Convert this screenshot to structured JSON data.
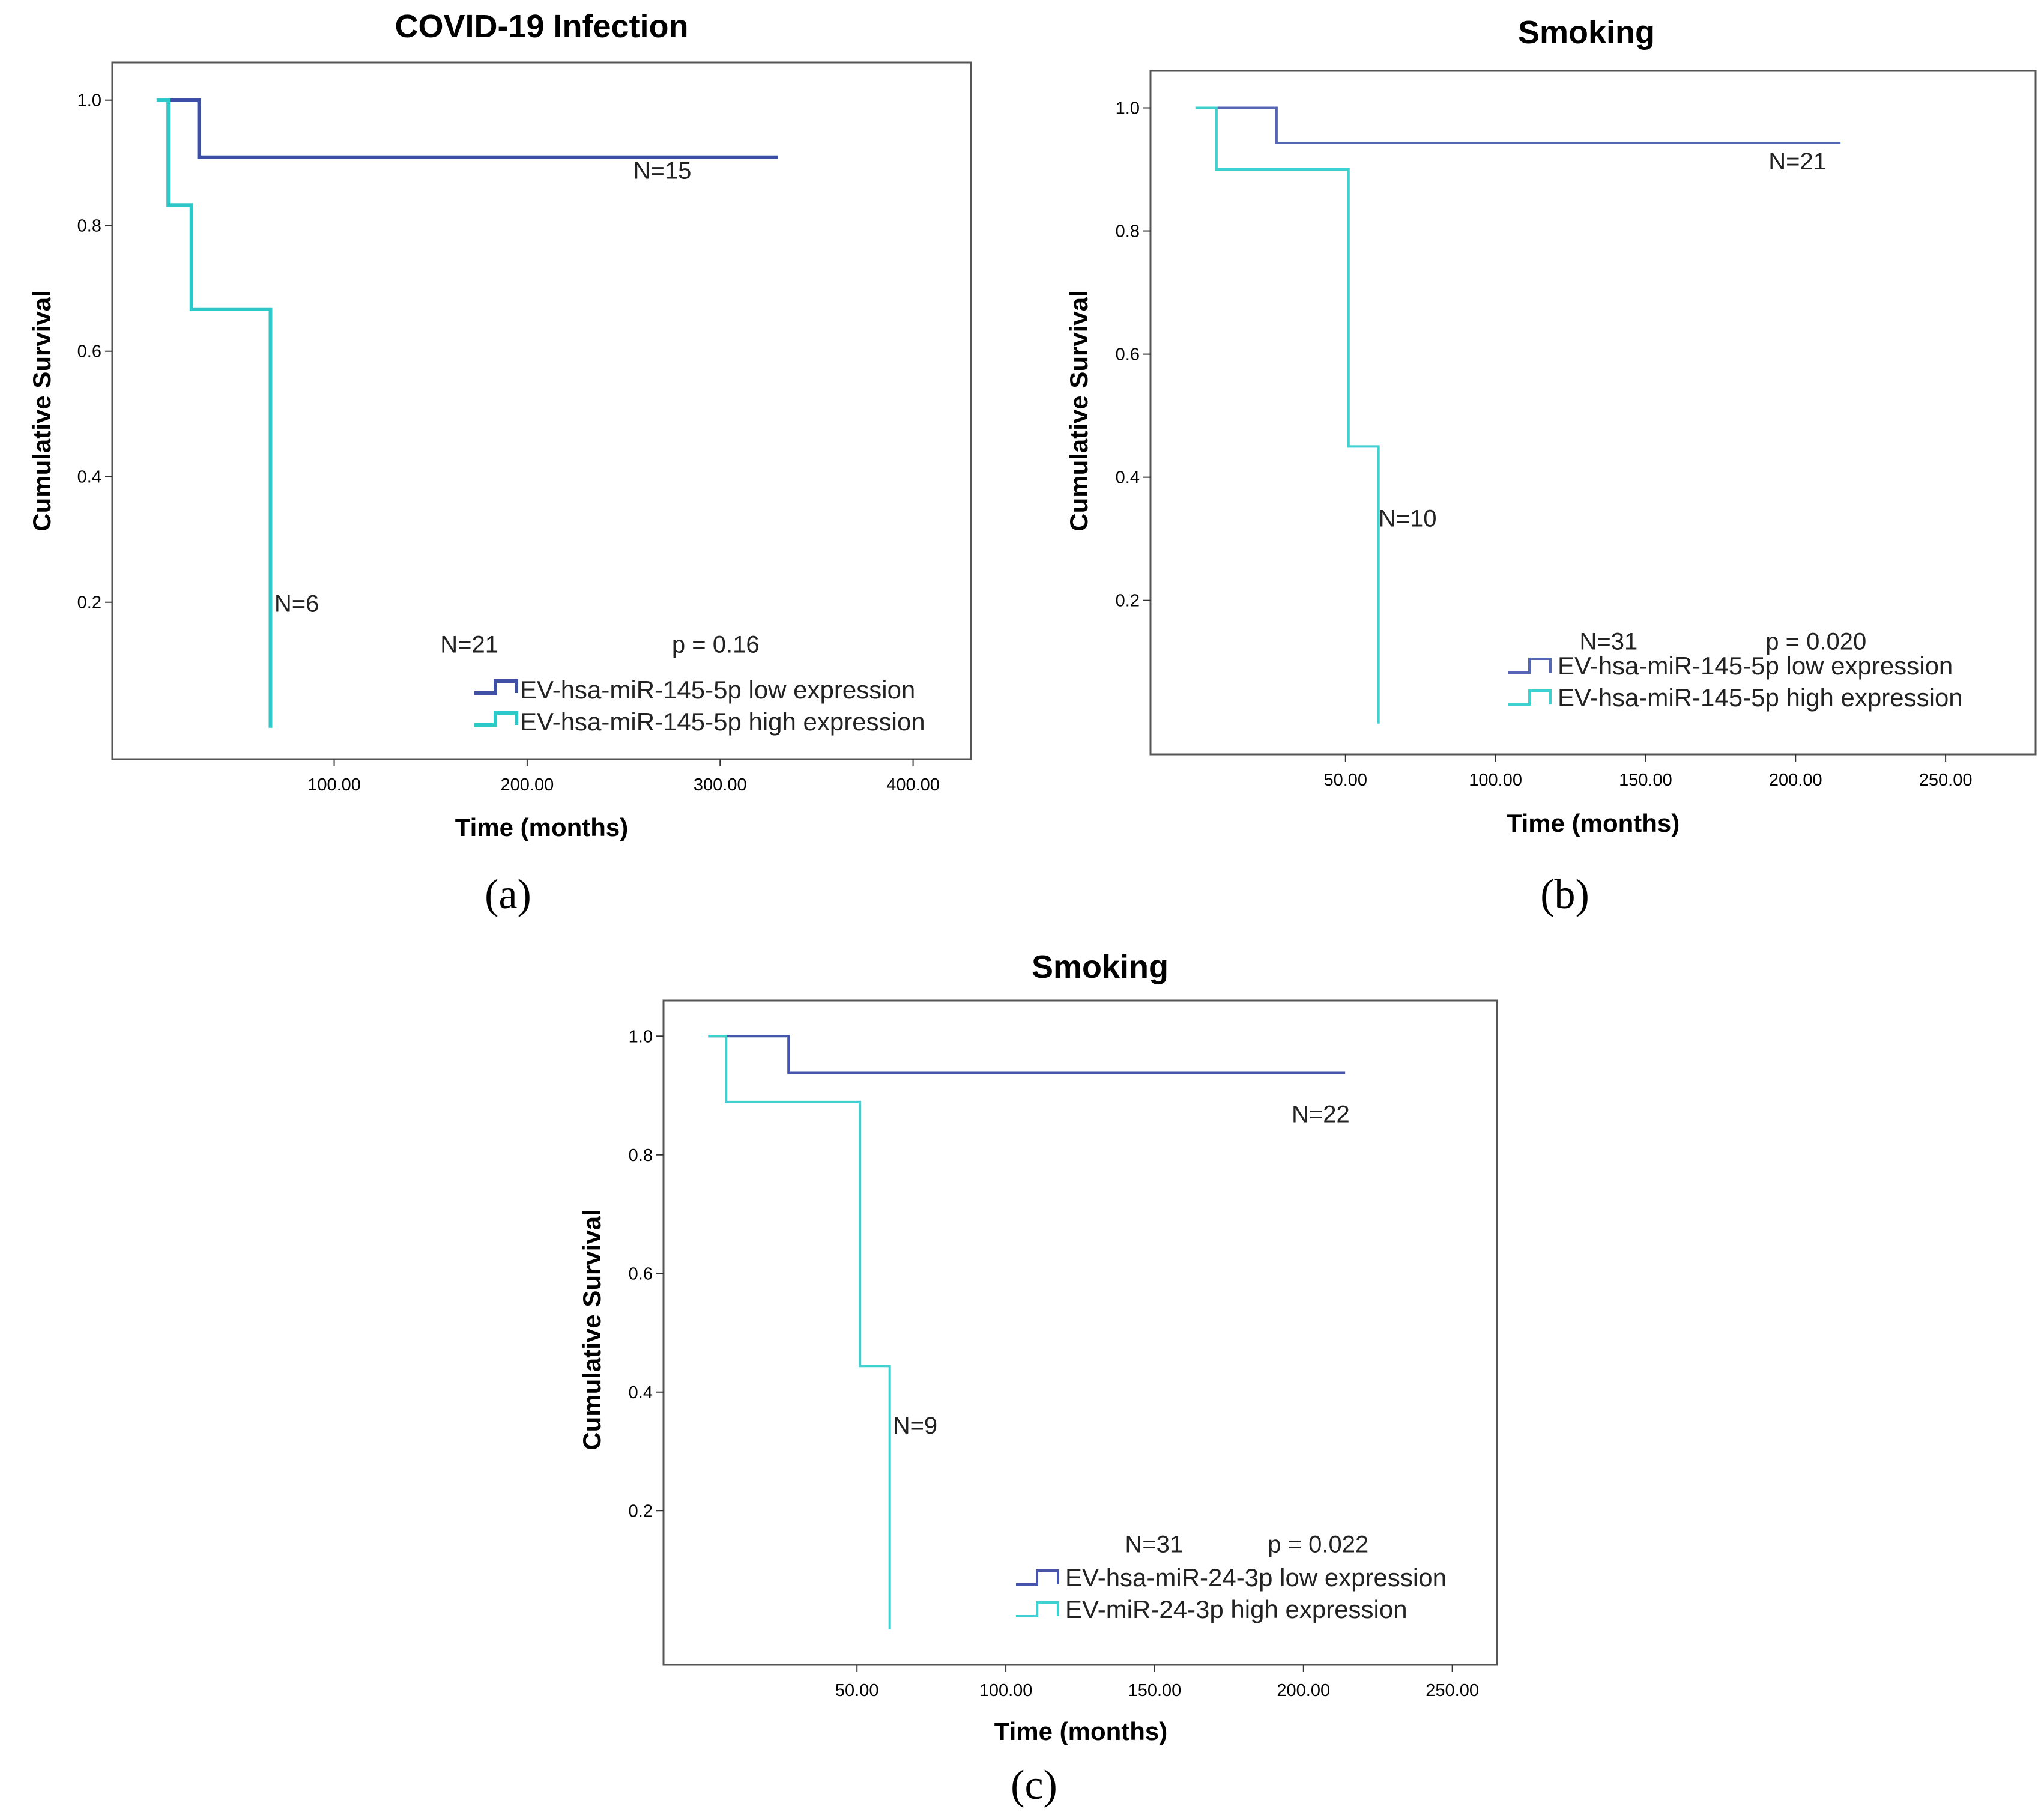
{
  "chart_data": [
    {
      "type": "line",
      "subtype": "kaplan-meier",
      "panel_label": "(a)",
      "title": "COVID-19 Infection",
      "xlabel": "Time (months)",
      "ylabel": "Cumulative Survival",
      "xlim": [
        -15,
        430
      ],
      "ylim": [
        -0.05,
        1.06
      ],
      "x_ticks": [
        100,
        200,
        300,
        400
      ],
      "x_tick_labels": [
        "100.00",
        "200.00",
        "300.00",
        "400.00"
      ],
      "y_ticks": [
        0.2,
        0.4,
        0.6,
        0.8,
        1.0
      ],
      "y_tick_labels": [
        "0.2",
        "0.4",
        "0.6",
        "0.8",
        "1.0"
      ],
      "series": [
        {
          "name": "EV-hsa-miR-145-5p low expression",
          "color": "#3e4fa6",
          "points": [
            [
              8,
              1.0
            ],
            [
              30,
              1.0
            ],
            [
              30,
              0.909
            ],
            [
              330,
              0.909
            ]
          ]
        },
        {
          "name": "EV-hsa-miR-145-5p high expression",
          "color": "#2ec8c8",
          "points": [
            [
              8,
              1.0
            ],
            [
              14,
              1.0
            ],
            [
              14,
              0.833
            ],
            [
              26,
              0.833
            ],
            [
              26,
              0.667
            ],
            [
              67,
              0.667
            ],
            [
              67,
              0.0
            ]
          ]
        }
      ],
      "annotations": [
        {
          "text": "N=15",
          "x": 255,
          "y": 0.875
        },
        {
          "text": "N=6",
          "x": 69,
          "y": 0.185
        },
        {
          "text": "N=21",
          "x": 155,
          "y": 0.12
        },
        {
          "text": "p = 0.16",
          "x": 275,
          "y": 0.12
        }
      ],
      "legend": {
        "position": "bottom-right"
      }
    },
    {
      "type": "line",
      "subtype": "kaplan-meier",
      "panel_label": "(b)",
      "title": "Smoking",
      "xlabel": "Time (months)",
      "ylabel": "Cumulative Survival",
      "xlim": [
        -15,
        280
      ],
      "ylim": [
        -0.05,
        1.06
      ],
      "x_ticks": [
        50,
        100,
        150,
        200,
        250
      ],
      "x_tick_labels": [
        "50.00",
        "100.00",
        "150.00",
        "200.00",
        "250.00"
      ],
      "y_ticks": [
        0.2,
        0.4,
        0.6,
        0.8,
        1.0
      ],
      "y_tick_labels": [
        "0.2",
        "0.4",
        "0.6",
        "0.8",
        "1.0"
      ],
      "series": [
        {
          "name": "EV-hsa-miR-145-5p low expression",
          "color": "#5566b5",
          "points": [
            [
              0,
              1.0
            ],
            [
              27,
              1.0
            ],
            [
              27,
              0.943
            ],
            [
              215,
              0.943
            ]
          ]
        },
        {
          "name": "EV-hsa-miR-145-5p high expression",
          "color": "#3fd0d0",
          "points": [
            [
              0,
              1.0
            ],
            [
              7,
              1.0
            ],
            [
              7,
              0.9
            ],
            [
              51,
              0.9
            ],
            [
              51,
              0.45
            ],
            [
              61,
              0.45
            ],
            [
              61,
              0.0
            ]
          ]
        }
      ],
      "annotations": [
        {
          "text": "N=21",
          "x": 191,
          "y": 0.9
        },
        {
          "text": "N=10",
          "x": 61,
          "y": 0.32
        },
        {
          "text": "N=31",
          "x": 128,
          "y": 0.12
        },
        {
          "text": "p = 0.020",
          "x": 190,
          "y": 0.12
        }
      ],
      "legend": {
        "position": "bottom-right"
      }
    },
    {
      "type": "line",
      "subtype": "kaplan-meier",
      "panel_label": "(c)",
      "title": "Smoking",
      "xlabel": "Time (months)",
      "ylabel": "Cumulative Survival",
      "xlim": [
        -15,
        265
      ],
      "ylim": [
        -0.06,
        1.06
      ],
      "x_ticks": [
        50,
        100,
        150,
        200,
        250
      ],
      "x_tick_labels": [
        "50.00",
        "100.00",
        "150.00",
        "200.00",
        "250.00"
      ],
      "y_ticks": [
        0.2,
        0.4,
        0.6,
        0.8,
        1.0
      ],
      "y_tick_labels": [
        "0.2",
        "0.4",
        "0.6",
        "0.8",
        "1.0"
      ],
      "series": [
        {
          "name": "EV-hsa-miR-24-3p low expression",
          "color": "#4756ad",
          "points": [
            [
              0,
              1.0
            ],
            [
              27,
              1.0
            ],
            [
              27,
              0.938
            ],
            [
              214,
              0.938
            ]
          ]
        },
        {
          "name": "EV-miR-24-3p high expression",
          "color": "#3fd0d0",
          "points": [
            [
              0,
              1.0
            ],
            [
              6,
              1.0
            ],
            [
              6,
              0.889
            ],
            [
              51,
              0.889
            ],
            [
              51,
              0.444
            ],
            [
              61,
              0.444
            ],
            [
              61,
              0.0
            ]
          ]
        }
      ],
      "annotations": [
        {
          "text": "N=22",
          "x": 196,
          "y": 0.855
        },
        {
          "text": "N=9",
          "x": 62,
          "y": 0.33
        },
        {
          "text": "N=31",
          "x": 140,
          "y": 0.13
        },
        {
          "text": "p = 0.022",
          "x": 188,
          "y": 0.13
        }
      ],
      "legend": {
        "position": "bottom-right"
      }
    }
  ]
}
